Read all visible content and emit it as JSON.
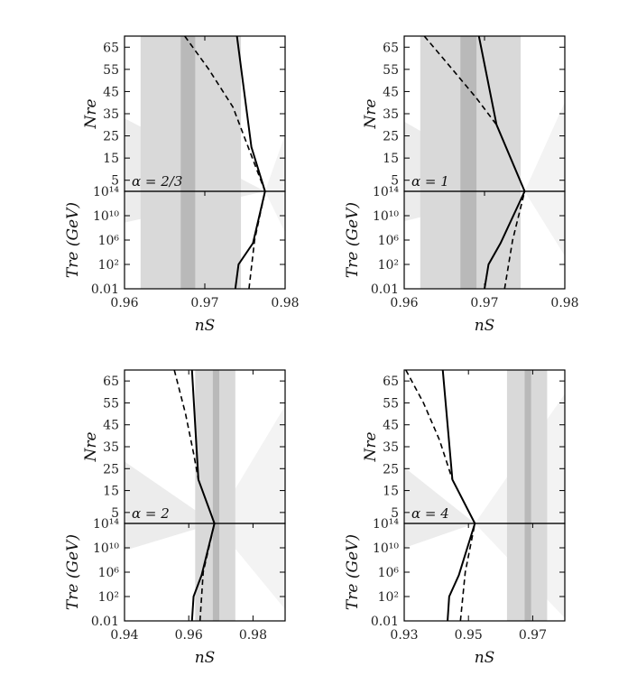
{
  "chart_data": [
    {
      "type": "line",
      "annotation": "α = 2/3",
      "xlabel": "nS",
      "xlim": [
        0.96,
        0.98
      ],
      "xticks": [
        "0.96",
        "0.97",
        "0.98"
      ],
      "top": {
        "ylabel": "Nre",
        "ylim": [
          0,
          70
        ],
        "yticks": [
          "5",
          "15",
          "25",
          "35",
          "45",
          "55",
          "65"
        ],
        "series": [
          {
            "style": "solid",
            "x": [
              0.974,
              0.9758,
              0.9775
            ],
            "y": [
              70,
              20,
              0
            ]
          },
          {
            "style": "dashed",
            "x": [
              0.9675,
              0.9705,
              0.9735,
              0.9775
            ],
            "y": [
              70,
              55,
              38,
              0
            ]
          }
        ]
      },
      "bottom": {
        "ylabel": "Tre (GeV)",
        "yticks": [
          "0.01",
          "10²",
          "10⁶",
          "10¹⁰",
          "10¹⁴"
        ],
        "series": [
          {
            "style": "solid",
            "x": [
              0.9738,
              0.9742,
              0.976,
              0.9775
            ],
            "y": [
              "0.01",
              "10²",
              "10⁵·⁵",
              "10¹⁴"
            ]
          },
          {
            "style": "dashed",
            "x": [
              0.9755,
              0.9762,
              0.9775
            ],
            "y": [
              "0.01",
              "10⁶",
              "10¹⁴"
            ]
          }
        ]
      },
      "bands": {
        "dark": [
          0.967,
          0.9688
        ],
        "light": [
          0.962,
          0.9745
        ]
      }
    },
    {
      "type": "line",
      "annotation": "α = 1",
      "xlabel": "nS",
      "xlim": [
        0.96,
        0.98
      ],
      "xticks": [
        "0.96",
        "0.97",
        "0.98"
      ],
      "top": {
        "ylabel": "Nre",
        "ylim": [
          0,
          70
        ],
        "yticks": [
          "5",
          "15",
          "25",
          "35",
          "45",
          "55",
          "65"
        ],
        "series": [
          {
            "style": "solid",
            "x": [
              0.9693,
              0.9715,
              0.975
            ],
            "y": [
              70,
              30,
              0
            ]
          },
          {
            "style": "dashed",
            "x": [
              0.9625,
              0.966,
              0.969,
              0.9715
            ],
            "y": [
              70,
              55,
              42,
              30
            ]
          }
        ]
      },
      "bottom": {
        "ylabel": "Tre (GeV)",
        "yticks": [
          "0.01",
          "10²",
          "10⁶",
          "10¹⁰",
          "10¹⁴"
        ],
        "series": [
          {
            "style": "solid",
            "x": [
              0.97,
              0.9705,
              0.972,
              0.975
            ],
            "y": [
              "0.01",
              "10²",
              "10⁵·⁵",
              "10¹⁴"
            ]
          },
          {
            "style": "dashed",
            "x": [
              0.9725,
              0.9735,
              0.975
            ],
            "y": [
              "0.01",
              "10⁶",
              "10¹⁴"
            ]
          }
        ]
      },
      "bands": {
        "dark": [
          0.967,
          0.969
        ],
        "light": [
          0.962,
          0.9745
        ]
      }
    },
    {
      "type": "line",
      "annotation": "α = 2",
      "xlabel": "nS",
      "xlim": [
        0.94,
        0.99
      ],
      "xticks": [
        "0.94",
        "0.96",
        "0.98"
      ],
      "top": {
        "ylabel": "Nre",
        "ylim": [
          0,
          70
        ],
        "yticks": [
          "5",
          "15",
          "25",
          "35",
          "45",
          "55",
          "65"
        ],
        "series": [
          {
            "style": "solid",
            "x": [
              0.961,
              0.963,
              0.968
            ],
            "y": [
              70,
              20,
              0
            ]
          },
          {
            "style": "dashed",
            "x": [
              0.9555,
              0.959,
              0.9615,
              0.963
            ],
            "y": [
              70,
              50,
              32,
              20
            ]
          }
        ]
      },
      "bottom": {
        "ylabel": "Tre (GeV)",
        "yticks": [
          "0.01",
          "10²",
          "10⁶",
          "10¹⁰",
          "10¹⁴"
        ],
        "series": [
          {
            "style": "solid",
            "x": [
              0.961,
              0.9615,
              0.964,
              0.968
            ],
            "y": [
              "0.01",
              "10²",
              "10⁵·⁵",
              "10¹⁴"
            ]
          },
          {
            "style": "dashed",
            "x": [
              0.9635,
              0.9645,
              0.968
            ],
            "y": [
              "0.01",
              "10⁶",
              "10¹⁴"
            ]
          }
        ]
      },
      "bands": {
        "dark": [
          0.9675,
          0.9695
        ],
        "light": [
          0.962,
          0.9745
        ]
      }
    },
    {
      "type": "line",
      "annotation": "α = 4",
      "xlabel": "nS",
      "xlim": [
        0.93,
        0.98
      ],
      "xticks": [
        "0.93",
        "0.95",
        "0.97"
      ],
      "top": {
        "ylabel": "Nre",
        "ylim": [
          0,
          70
        ],
        "yticks": [
          "5",
          "15",
          "25",
          "35",
          "45",
          "55",
          "65"
        ],
        "series": [
          {
            "style": "solid",
            "x": [
              0.942,
              0.945,
              0.952
            ],
            "y": [
              70,
              20,
              0
            ]
          },
          {
            "style": "dashed",
            "x": [
              0.9305,
              0.936,
              0.941,
              0.945
            ],
            "y": [
              70,
              55,
              38,
              20
            ]
          }
        ]
      },
      "bottom": {
        "ylabel": "Tre (GeV)",
        "yticks": [
          "0.01",
          "10²",
          "10⁶",
          "10¹⁰",
          "10¹⁴"
        ],
        "series": [
          {
            "style": "solid",
            "x": [
              0.9435,
              0.944,
              0.947,
              0.952
            ],
            "y": [
              "0.01",
              "10²",
              "10⁵·⁵",
              "10¹⁴"
            ]
          },
          {
            "style": "dashed",
            "x": [
              0.9475,
              0.949,
              0.952
            ],
            "y": [
              "0.01",
              "10⁶",
              "10¹⁴"
            ]
          }
        ]
      },
      "bands": {
        "dark": [
          0.9675,
          0.9695
        ],
        "light": [
          0.962,
          0.9745
        ]
      }
    }
  ]
}
